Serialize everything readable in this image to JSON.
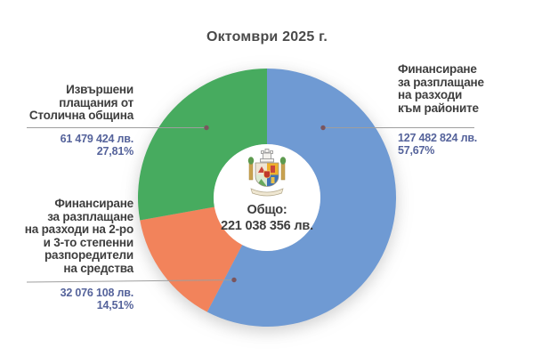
{
  "title": "Октомври 2025 г.",
  "center": {
    "label": "Общо:",
    "value": "221 038 356 лв."
  },
  "chart_data": {
    "type": "pie",
    "donut": true,
    "title": "Октомври 2025 г.",
    "start_angle_deg": 0,
    "direction": "clockwise",
    "total_value": 221038356,
    "total_label": "Общо:",
    "total_value_text": "221 038 356 лв.",
    "series": [
      {
        "name": "Финансиране за разплащане на разходи към районите",
        "value": 127482824,
        "value_text": "127 482 824 лв.",
        "percent": 57.67,
        "percent_text": "57,67%",
        "color": "#6f9ad3"
      },
      {
        "name": "Финансиране за разплащане на разходи на 2-ро и 3-то степенни разпоредители на средства",
        "value": 32076108,
        "value_text": "32 076 108 лв.",
        "percent": 14.51,
        "percent_text": "14,51%",
        "color": "#f2835b"
      },
      {
        "name": "Извършени плащания от Столична община",
        "value": 61479424,
        "value_text": "61 479 424 лв.",
        "percent": 27.81,
        "percent_text": "27,81%",
        "color": "#47ab5f"
      }
    ]
  },
  "labels": {
    "left_top": {
      "lines": [
        "Извършени",
        "плащания от",
        "Столична община"
      ],
      "value": "61 479 424 лв.",
      "percent": "27,81%"
    },
    "left_bottom": {
      "lines": [
        "Финансиране",
        "за разплащане",
        "на разходи на 2-ро",
        "и 3-то степенни",
        "разпоредители",
        "на средства"
      ],
      "value": "32 076 108 лв.",
      "percent": "14,51%"
    },
    "right": {
      "lines": [
        "Финансиране",
        "за разплащане",
        "на разходи",
        "към районите"
      ],
      "value": "127 482 824 лв.",
      "percent": "57,67%"
    }
  },
  "icons": {
    "emblem": "sofia-coat-of-arms"
  },
  "style": {
    "leader_line_color": "#9e9e9e",
    "leader_dot_color": "#7a555e",
    "value_text_color": "#55639b",
    "label_text_color": "#3e3e3e"
  }
}
